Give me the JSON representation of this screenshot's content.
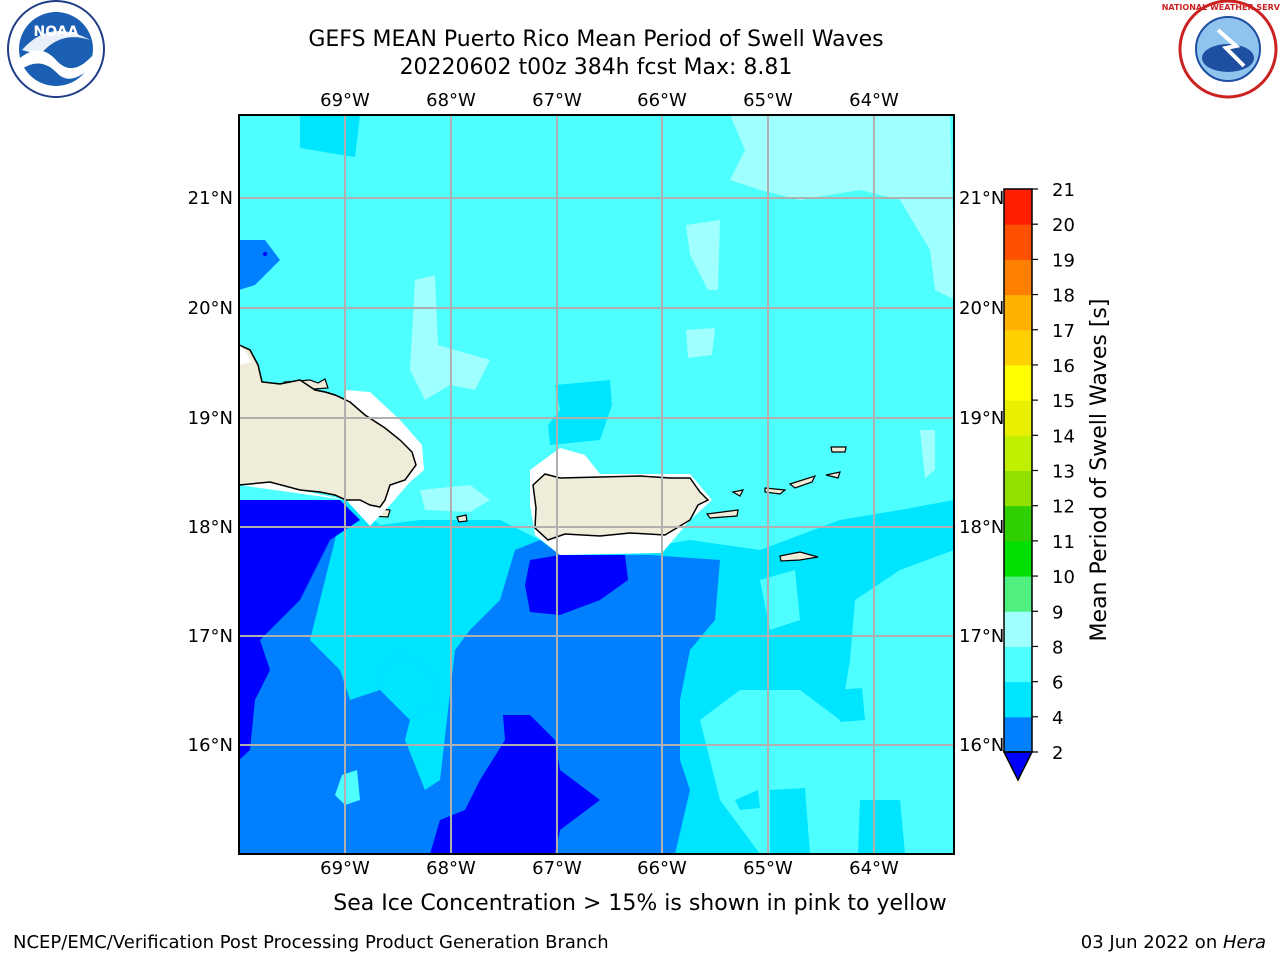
{
  "title": {
    "line1": "GEFS MEAN Puerto Rico Mean Period of Swell Waves",
    "line2": "20220602 t00z 384h fcst   Max: 8.81"
  },
  "map": {
    "lon_labels": [
      "69°W",
      "68°W",
      "67°W",
      "66°W",
      "65°W",
      "64°W"
    ],
    "lat_labels": [
      "21°N",
      "20°N",
      "19°N",
      "18°N",
      "17°N",
      "16°N"
    ]
  },
  "colorbar": {
    "label": "Mean Period of Swell Waves [s]",
    "levels": [
      "2",
      "4",
      "6",
      "8",
      "9",
      "10",
      "11",
      "12",
      "13",
      "14",
      "15",
      "16",
      "17",
      "18",
      "19",
      "20",
      "21"
    ],
    "colors": [
      "#0080ff",
      "#00e5ff",
      "#4dffff",
      "#a0ffff",
      "#50f080",
      "#00e000",
      "#30d000",
      "#90e000",
      "#c0f000",
      "#e8f000",
      "#ffff00",
      "#ffd000",
      "#ffb000",
      "#ff8000",
      "#ff5000",
      "#ff2000"
    ],
    "under_color": "#0000ff"
  },
  "ice_note": "Sea Ice Concentration > 15% is shown in pink to yellow",
  "footer": {
    "left": "NCEP/EMC/Verification Post Processing Product Generation Branch",
    "date": "03 Jun 2022 on ",
    "host": "Hera"
  },
  "logos": {
    "left": "noara-logo",
    "left_text": "NOAA",
    "right": "nws-logo",
    "right_text": "NATIONAL WEATHER SERVICE"
  }
}
